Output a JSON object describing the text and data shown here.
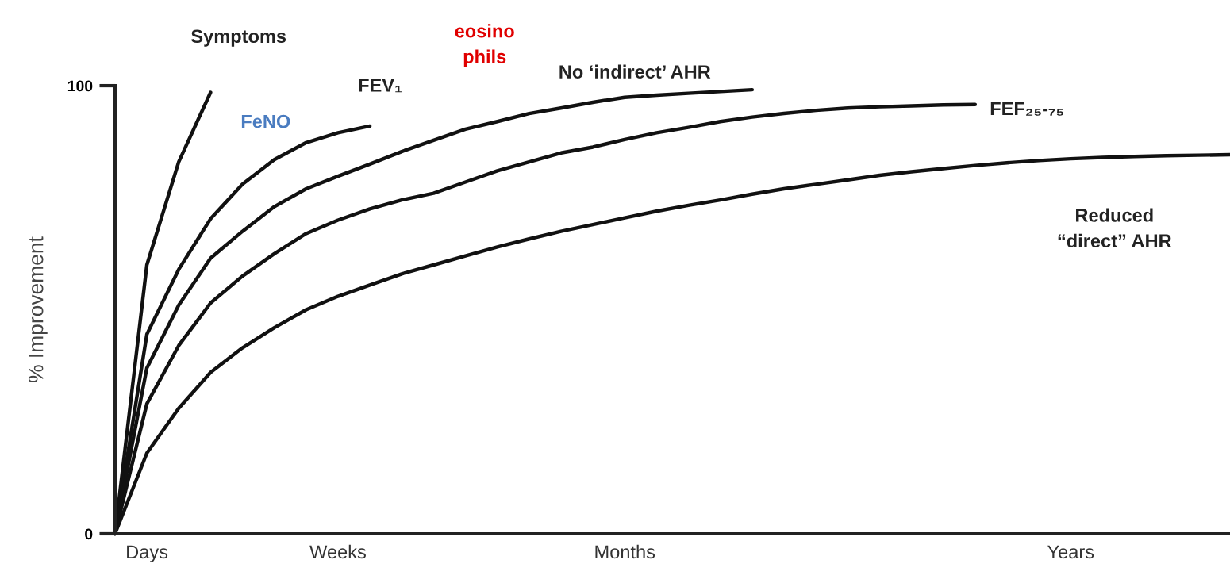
{
  "chart_data": {
    "type": "line",
    "ylabel": "% Improvement",
    "categories": [
      null,
      "Days",
      null,
      null,
      null,
      null,
      null,
      "Weeks",
      null,
      null,
      null,
      null,
      null,
      null,
      null,
      null,
      "Months",
      null,
      null,
      null,
      null,
      null,
      null,
      null,
      null,
      null,
      null,
      null,
      null,
      null,
      "Years",
      null,
      null,
      null,
      null,
      null
    ],
    "ylim": [
      0,
      100
    ],
    "yticks": [
      0,
      100
    ],
    "grid": false,
    "legend": false,
    "marker": "none",
    "line_style": "solid",
    "series": [
      {
        "color": "#111111",
        "values": [
          0,
          60,
          83,
          98.5,
          null,
          null,
          null,
          null,
          null,
          null,
          null,
          null,
          null,
          null,
          null,
          null,
          null,
          null,
          null,
          null,
          null,
          null,
          null,
          null,
          null,
          null,
          null,
          null,
          null,
          null,
          null,
          null,
          null,
          null,
          null,
          null
        ]
      },
      {
        "color": "#111111",
        "values": [
          0,
          44.5,
          59,
          70.3,
          78,
          83.5,
          87.3,
          89.5,
          91,
          null,
          null,
          null,
          null,
          null,
          null,
          null,
          null,
          null,
          null,
          null,
          null,
          null,
          null,
          null,
          null,
          null,
          null,
          null,
          null,
          null,
          null,
          null,
          null,
          null,
          null,
          null
        ]
      },
      {
        "color": "#111111",
        "values": [
          0,
          37,
          51,
          61.5,
          67.5,
          73,
          77,
          79.8,
          82.5,
          85.3,
          87.8,
          90.3,
          92,
          93.8,
          95,
          96.3,
          97.4,
          97.9,
          98.3,
          98.7,
          99.1,
          null,
          null,
          null,
          null,
          null,
          null,
          null,
          null,
          null,
          null,
          null,
          null,
          null,
          null,
          null
        ]
      },
      {
        "color": "#111111",
        "values": [
          0,
          29,
          42,
          51.5,
          57.5,
          62.5,
          67,
          70,
          72.5,
          74.5,
          76,
          78.5,
          81,
          83,
          85,
          86.3,
          88,
          89.5,
          90.7,
          92,
          93,
          93.8,
          94.5,
          95,
          95.3,
          95.5,
          95.7,
          95.8,
          null,
          null,
          null,
          null,
          null,
          null,
          null,
          null
        ]
      },
      {
        "color": "#111111",
        "values": [
          0,
          18,
          28,
          36,
          41.5,
          46,
          50,
          53,
          55.5,
          58,
          60,
          62,
          64,
          65.8,
          67.5,
          69,
          70.5,
          72,
          73.3,
          74.5,
          75.8,
          77,
          78,
          79,
          80,
          80.8,
          81.5,
          82.2,
          82.8,
          83.3,
          83.7,
          84,
          84.2,
          84.4,
          84.5,
          84.6
        ]
      }
    ],
    "annotations": [
      "Symptoms",
      "FeNO",
      "FEV₁",
      "eosino\nphils",
      "No ‘indirect’ AHR",
      "FEF₂₅-₇₅",
      "Reduced\n“direct” AHR"
    ]
  }
}
